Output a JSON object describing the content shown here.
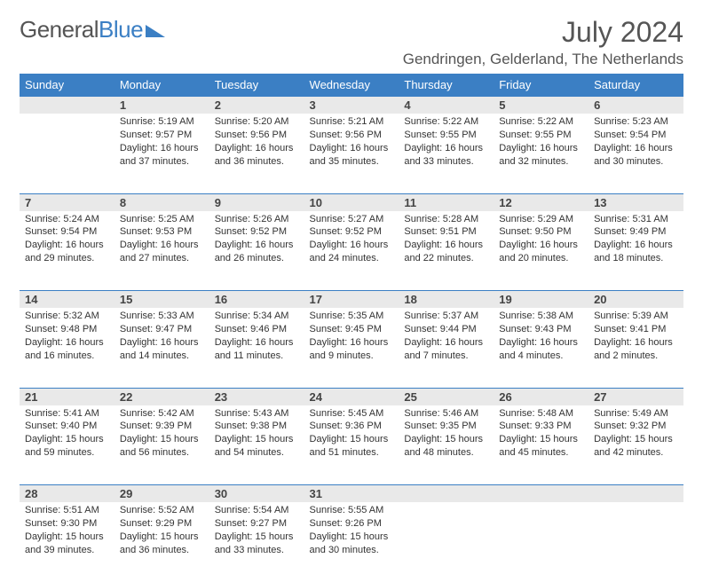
{
  "brand": {
    "part1": "General",
    "part2": "Blue"
  },
  "title": "July 2024",
  "location": "Gendringen, Gelderland, The Netherlands",
  "colors": {
    "accent": "#3b7fc4",
    "header_bg": "#3b7fc4",
    "daynum_bg": "#e9e9e9",
    "border": "#3b7fc4",
    "text": "#333333",
    "muted": "#555555"
  },
  "weekday_labels": [
    "Sunday",
    "Monday",
    "Tuesday",
    "Wednesday",
    "Thursday",
    "Friday",
    "Saturday"
  ],
  "layout": {
    "first_weekday_index": 1,
    "days_in_month": 31,
    "weeks": 5
  },
  "days": {
    "1": {
      "sunrise": "5:19 AM",
      "sunset": "9:57 PM",
      "daylight": "16 hours and 37 minutes."
    },
    "2": {
      "sunrise": "5:20 AM",
      "sunset": "9:56 PM",
      "daylight": "16 hours and 36 minutes."
    },
    "3": {
      "sunrise": "5:21 AM",
      "sunset": "9:56 PM",
      "daylight": "16 hours and 35 minutes."
    },
    "4": {
      "sunrise": "5:22 AM",
      "sunset": "9:55 PM",
      "daylight": "16 hours and 33 minutes."
    },
    "5": {
      "sunrise": "5:22 AM",
      "sunset": "9:55 PM",
      "daylight": "16 hours and 32 minutes."
    },
    "6": {
      "sunrise": "5:23 AM",
      "sunset": "9:54 PM",
      "daylight": "16 hours and 30 minutes."
    },
    "7": {
      "sunrise": "5:24 AM",
      "sunset": "9:54 PM",
      "daylight": "16 hours and 29 minutes."
    },
    "8": {
      "sunrise": "5:25 AM",
      "sunset": "9:53 PM",
      "daylight": "16 hours and 27 minutes."
    },
    "9": {
      "sunrise": "5:26 AM",
      "sunset": "9:52 PM",
      "daylight": "16 hours and 26 minutes."
    },
    "10": {
      "sunrise": "5:27 AM",
      "sunset": "9:52 PM",
      "daylight": "16 hours and 24 minutes."
    },
    "11": {
      "sunrise": "5:28 AM",
      "sunset": "9:51 PM",
      "daylight": "16 hours and 22 minutes."
    },
    "12": {
      "sunrise": "5:29 AM",
      "sunset": "9:50 PM",
      "daylight": "16 hours and 20 minutes."
    },
    "13": {
      "sunrise": "5:31 AM",
      "sunset": "9:49 PM",
      "daylight": "16 hours and 18 minutes."
    },
    "14": {
      "sunrise": "5:32 AM",
      "sunset": "9:48 PM",
      "daylight": "16 hours and 16 minutes."
    },
    "15": {
      "sunrise": "5:33 AM",
      "sunset": "9:47 PM",
      "daylight": "16 hours and 14 minutes."
    },
    "16": {
      "sunrise": "5:34 AM",
      "sunset": "9:46 PM",
      "daylight": "16 hours and 11 minutes."
    },
    "17": {
      "sunrise": "5:35 AM",
      "sunset": "9:45 PM",
      "daylight": "16 hours and 9 minutes."
    },
    "18": {
      "sunrise": "5:37 AM",
      "sunset": "9:44 PM",
      "daylight": "16 hours and 7 minutes."
    },
    "19": {
      "sunrise": "5:38 AM",
      "sunset": "9:43 PM",
      "daylight": "16 hours and 4 minutes."
    },
    "20": {
      "sunrise": "5:39 AM",
      "sunset": "9:41 PM",
      "daylight": "16 hours and 2 minutes."
    },
    "21": {
      "sunrise": "5:41 AM",
      "sunset": "9:40 PM",
      "daylight": "15 hours and 59 minutes."
    },
    "22": {
      "sunrise": "5:42 AM",
      "sunset": "9:39 PM",
      "daylight": "15 hours and 56 minutes."
    },
    "23": {
      "sunrise": "5:43 AM",
      "sunset": "9:38 PM",
      "daylight": "15 hours and 54 minutes."
    },
    "24": {
      "sunrise": "5:45 AM",
      "sunset": "9:36 PM",
      "daylight": "15 hours and 51 minutes."
    },
    "25": {
      "sunrise": "5:46 AM",
      "sunset": "9:35 PM",
      "daylight": "15 hours and 48 minutes."
    },
    "26": {
      "sunrise": "5:48 AM",
      "sunset": "9:33 PM",
      "daylight": "15 hours and 45 minutes."
    },
    "27": {
      "sunrise": "5:49 AM",
      "sunset": "9:32 PM",
      "daylight": "15 hours and 42 minutes."
    },
    "28": {
      "sunrise": "5:51 AM",
      "sunset": "9:30 PM",
      "daylight": "15 hours and 39 minutes."
    },
    "29": {
      "sunrise": "5:52 AM",
      "sunset": "9:29 PM",
      "daylight": "15 hours and 36 minutes."
    },
    "30": {
      "sunrise": "5:54 AM",
      "sunset": "9:27 PM",
      "daylight": "15 hours and 33 minutes."
    },
    "31": {
      "sunrise": "5:55 AM",
      "sunset": "9:26 PM",
      "daylight": "15 hours and 30 minutes."
    }
  },
  "labels": {
    "sunrise": "Sunrise:",
    "sunset": "Sunset:",
    "daylight": "Daylight:"
  }
}
